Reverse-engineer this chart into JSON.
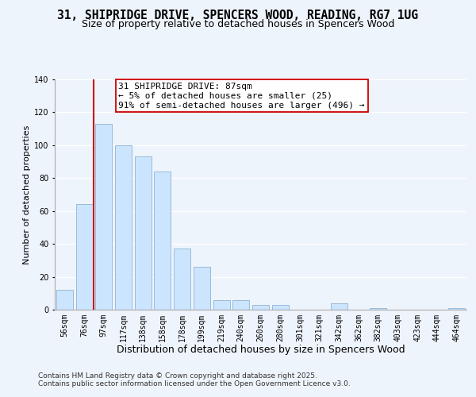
{
  "title1": "31, SHIPRIDGE DRIVE, SPENCERS WOOD, READING, RG7 1UG",
  "title2": "Size of property relative to detached houses in Spencers Wood",
  "xlabel": "Distribution of detached houses by size in Spencers Wood",
  "ylabel": "Number of detached properties",
  "bar_labels": [
    "56sqm",
    "76sqm",
    "97sqm",
    "117sqm",
    "138sqm",
    "158sqm",
    "178sqm",
    "199sqm",
    "219sqm",
    "240sqm",
    "260sqm",
    "280sqm",
    "301sqm",
    "321sqm",
    "342sqm",
    "362sqm",
    "382sqm",
    "403sqm",
    "423sqm",
    "444sqm",
    "464sqm"
  ],
  "bar_values": [
    12,
    64,
    113,
    100,
    93,
    84,
    37,
    26,
    6,
    6,
    3,
    3,
    0,
    0,
    4,
    0,
    1,
    0,
    0,
    0,
    1
  ],
  "bar_color": "#cce5ff",
  "bar_edge_color": "#99bbd8",
  "ylim": [
    0,
    140
  ],
  "yticks": [
    0,
    20,
    40,
    60,
    80,
    100,
    120,
    140
  ],
  "vline_color": "#cc0000",
  "vline_x_index": 1.5,
  "annotation_title": "31 SHIPRIDGE DRIVE: 87sqm",
  "annotation_line1": "← 5% of detached houses are smaller (25)",
  "annotation_line2": "91% of semi-detached houses are larger (496) →",
  "annotation_box_color": "#ffffff",
  "annotation_box_edge": "#cc0000",
  "background_color": "#eef4fb",
  "grid_color": "#ffffff",
  "footer1": "Contains HM Land Registry data © Crown copyright and database right 2025.",
  "footer2": "Contains public sector information licensed under the Open Government Licence v3.0.",
  "title1_fontsize": 10.5,
  "title2_fontsize": 9,
  "xlabel_fontsize": 9,
  "ylabel_fontsize": 8,
  "tick_fontsize": 7,
  "annotation_fontsize": 8,
  "footer_fontsize": 6.5
}
